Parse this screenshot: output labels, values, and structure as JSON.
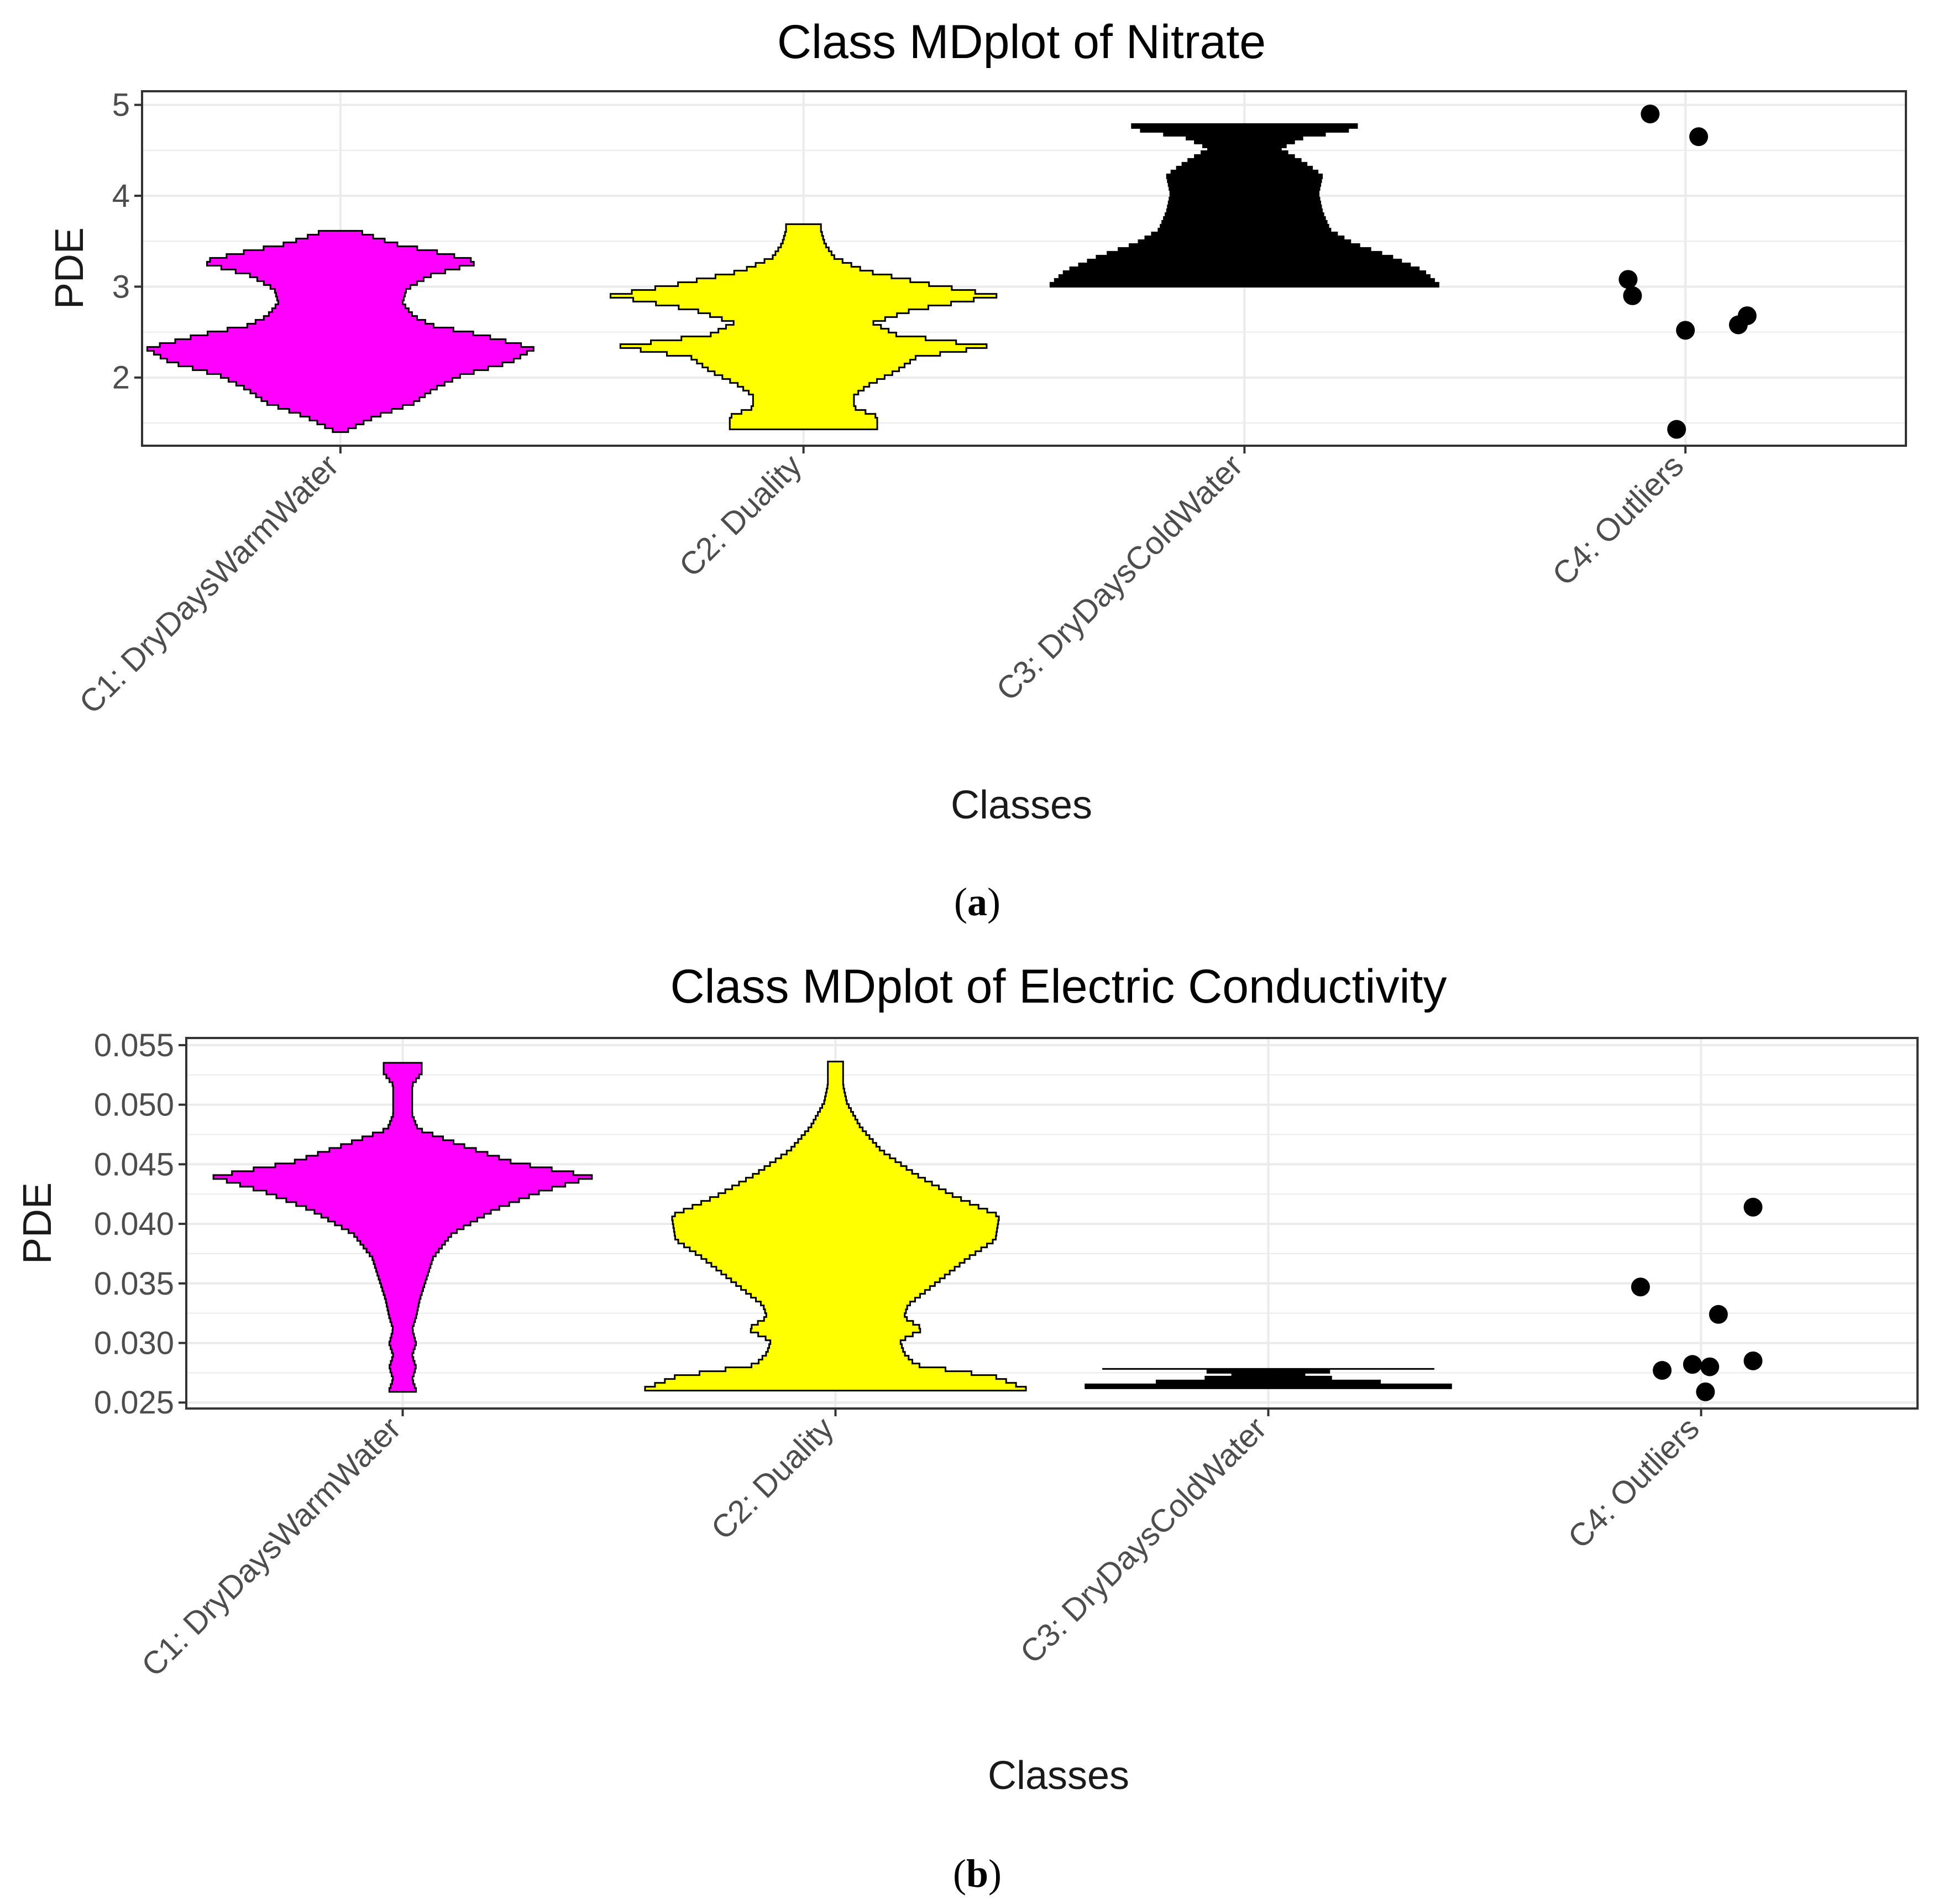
{
  "chart_data": [
    {
      "type": "violin",
      "title": "Class MDplot of Nitrate",
      "xlabel": "Classes",
      "ylabel": "PDE",
      "panel_label": "a",
      "categories": [
        "C1: DryDaysWarmWater",
        "C2: Duality",
        "C3: DryDaysColdWater",
        "C4: Outliers"
      ],
      "ylim": [
        1.25,
        5.15
      ],
      "yticks": [
        2,
        3,
        4,
        5
      ],
      "grid": true,
      "series": [
        {
          "category": "C1: DryDaysWarmWater",
          "fill": "#ff00ff",
          "profile": [
            [
              1.4,
              0.04
            ],
            [
              1.55,
              0.18
            ],
            [
              1.7,
              0.38
            ],
            [
              1.85,
              0.48
            ],
            [
              2.0,
              0.62
            ],
            [
              2.15,
              0.88
            ],
            [
              2.3,
              1.0
            ],
            [
              2.45,
              0.72
            ],
            [
              2.55,
              0.48
            ],
            [
              2.65,
              0.38
            ],
            [
              2.8,
              0.32
            ],
            [
              2.95,
              0.34
            ],
            [
              3.1,
              0.46
            ],
            [
              3.25,
              0.72
            ],
            [
              3.35,
              0.52
            ],
            [
              3.45,
              0.28
            ],
            [
              3.55,
              0.14
            ],
            [
              3.63,
              0.04
            ]
          ]
        },
        {
          "category": "C2: Duality",
          "fill": "#ffff00",
          "profile": [
            [
              1.43,
              0.38
            ],
            [
              1.55,
              0.38
            ],
            [
              1.65,
              0.26
            ],
            [
              1.78,
              0.26
            ],
            [
              1.9,
              0.34
            ],
            [
              2.05,
              0.48
            ],
            [
              2.2,
              0.58
            ],
            [
              2.32,
              0.96
            ],
            [
              2.45,
              0.48
            ],
            [
              2.58,
              0.36
            ],
            [
              2.72,
              0.56
            ],
            [
              2.88,
              1.0
            ],
            [
              3.0,
              0.66
            ],
            [
              3.15,
              0.32
            ],
            [
              3.3,
              0.16
            ],
            [
              3.45,
              0.11
            ],
            [
              3.6,
              0.09
            ],
            [
              3.7,
              0.09
            ]
          ]
        },
        {
          "category": "C3: DryDaysColdWater",
          "fill": "#000000",
          "profile": [
            [
              3.0,
              1.0
            ],
            [
              3.15,
              0.92
            ],
            [
              3.3,
              0.76
            ],
            [
              3.45,
              0.56
            ],
            [
              3.6,
              0.44
            ],
            [
              3.8,
              0.4
            ],
            [
              4.0,
              0.38
            ],
            [
              4.2,
              0.4
            ],
            [
              4.35,
              0.3
            ],
            [
              4.5,
              0.18
            ],
            [
              4.62,
              0.3
            ],
            [
              4.72,
              0.58
            ],
            [
              4.82,
              0.58
            ]
          ]
        }
      ],
      "points": [
        {
          "category": "C4: Outliers",
          "x_jitter": -0.08,
          "y": 4.9
        },
        {
          "category": "C4: Outliers",
          "x_jitter": 0.03,
          "y": 4.65
        },
        {
          "category": "C4: Outliers",
          "x_jitter": -0.13,
          "y": 3.08
        },
        {
          "category": "C4: Outliers",
          "x_jitter": -0.12,
          "y": 2.9
        },
        {
          "category": "C4: Outliers",
          "x_jitter": 0.0,
          "y": 2.52
        },
        {
          "category": "C4: Outliers",
          "x_jitter": 0.12,
          "y": 2.58
        },
        {
          "category": "C4: Outliers",
          "x_jitter": 0.14,
          "y": 2.68
        },
        {
          "category": "C4: Outliers",
          "x_jitter": -0.02,
          "y": 1.43
        }
      ]
    },
    {
      "type": "violin",
      "title": "Class MDplot of Electric Conductivity",
      "xlabel": "Classes",
      "ylabel": "PDE",
      "panel_label": "b",
      "categories": [
        "C1: DryDaysWarmWater",
        "C2: Duality",
        "C3: DryDaysColdWater",
        "C4: Outliers"
      ],
      "ylim": [
        0.0245,
        0.0556
      ],
      "yticks": [
        0.025,
        0.03,
        0.035,
        0.04,
        0.045,
        0.05,
        0.055
      ],
      "ytick_labels": [
        "0.025",
        "0.030",
        "0.035",
        "0.040",
        "0.045",
        "0.050",
        "0.055"
      ],
      "grid": true,
      "series": [
        {
          "category": "C1: DryDaysWarmWater",
          "fill": "#ff00ff",
          "profile": [
            [
              0.0259,
              0.07
            ],
            [
              0.0268,
              0.05
            ],
            [
              0.0278,
              0.07
            ],
            [
              0.0288,
              0.05
            ],
            [
              0.0298,
              0.07
            ],
            [
              0.031,
              0.05
            ],
            [
              0.032,
              0.07
            ],
            [
              0.0335,
              0.09
            ],
            [
              0.0355,
              0.13
            ],
            [
              0.037,
              0.16
            ],
            [
              0.039,
              0.26
            ],
            [
              0.041,
              0.48
            ],
            [
              0.0425,
              0.72
            ],
            [
              0.0438,
              1.0
            ],
            [
              0.045,
              0.58
            ],
            [
              0.0465,
              0.3
            ],
            [
              0.0478,
              0.08
            ],
            [
              0.049,
              0.05
            ],
            [
              0.0502,
              0.05
            ],
            [
              0.0515,
              0.05
            ],
            [
              0.0525,
              0.1
            ],
            [
              0.0537,
              0.1
            ]
          ]
        },
        {
          "category": "C2: Duality",
          "fill": "#ffff00",
          "profile": [
            [
              0.026,
              1.0
            ],
            [
              0.027,
              0.84
            ],
            [
              0.028,
              0.42
            ],
            [
              0.029,
              0.36
            ],
            [
              0.03,
              0.34
            ],
            [
              0.031,
              0.46
            ],
            [
              0.032,
              0.36
            ],
            [
              0.033,
              0.38
            ],
            [
              0.034,
              0.46
            ],
            [
              0.0355,
              0.58
            ],
            [
              0.037,
              0.7
            ],
            [
              0.0385,
              0.84
            ],
            [
              0.0405,
              0.86
            ],
            [
              0.0422,
              0.62
            ],
            [
              0.044,
              0.42
            ],
            [
              0.046,
              0.24
            ],
            [
              0.048,
              0.13
            ],
            [
              0.05,
              0.06
            ],
            [
              0.0515,
              0.04
            ],
            [
              0.0525,
              0.04
            ],
            [
              0.0537,
              0.04
            ]
          ]
        },
        {
          "category": "C3: DryDaysColdWater",
          "fill": "#000000",
          "profile": [
            [
              0.0262,
              0.96
            ],
            [
              0.0266,
              0.5
            ],
            [
              0.0271,
              0.16
            ],
            [
              0.0275,
              0.32
            ],
            [
              0.0279,
              1.0
            ],
            [
              0.0281,
              0.6
            ]
          ]
        }
      ],
      "points": [
        {
          "category": "C4: Outliers",
          "x_jitter": 0.12,
          "y": 0.0414
        },
        {
          "category": "C4: Outliers",
          "x_jitter": -0.14,
          "y": 0.0347
        },
        {
          "category": "C4: Outliers",
          "x_jitter": 0.04,
          "y": 0.0324
        },
        {
          "category": "C4: Outliers",
          "x_jitter": 0.12,
          "y": 0.0285
        },
        {
          "category": "C4: Outliers",
          "x_jitter": -0.02,
          "y": 0.0282
        },
        {
          "category": "C4: Outliers",
          "x_jitter": 0.02,
          "y": 0.028
        },
        {
          "category": "C4: Outliers",
          "x_jitter": -0.09,
          "y": 0.0277
        },
        {
          "category": "C4: Outliers",
          "x_jitter": 0.01,
          "y": 0.0259
        }
      ]
    }
  ]
}
